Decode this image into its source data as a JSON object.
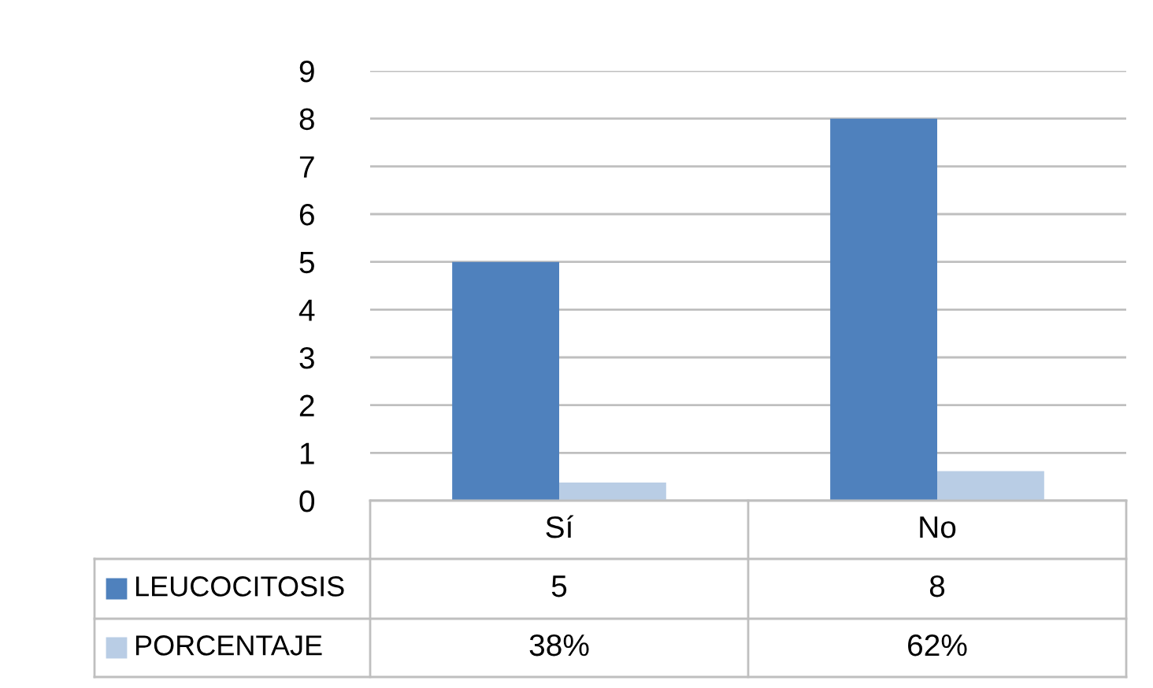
{
  "chart_data": {
    "type": "bar",
    "categories": [
      "Sí",
      "No"
    ],
    "series": [
      {
        "name": "LEUCOCITOSIS",
        "color": "#4f81bd",
        "values": [
          5,
          8
        ],
        "value_labels": [
          "5",
          "8"
        ]
      },
      {
        "name": "PORCENTAJE",
        "color": "#b9cde5",
        "values": [
          0.38,
          0.62
        ],
        "value_labels": [
          "38%",
          "62%"
        ]
      }
    ],
    "ylim": [
      0,
      9
    ],
    "yticks": [
      0,
      1,
      2,
      3,
      4,
      5,
      6,
      7,
      8,
      9
    ],
    "grid": "y",
    "legend": "bottom"
  }
}
